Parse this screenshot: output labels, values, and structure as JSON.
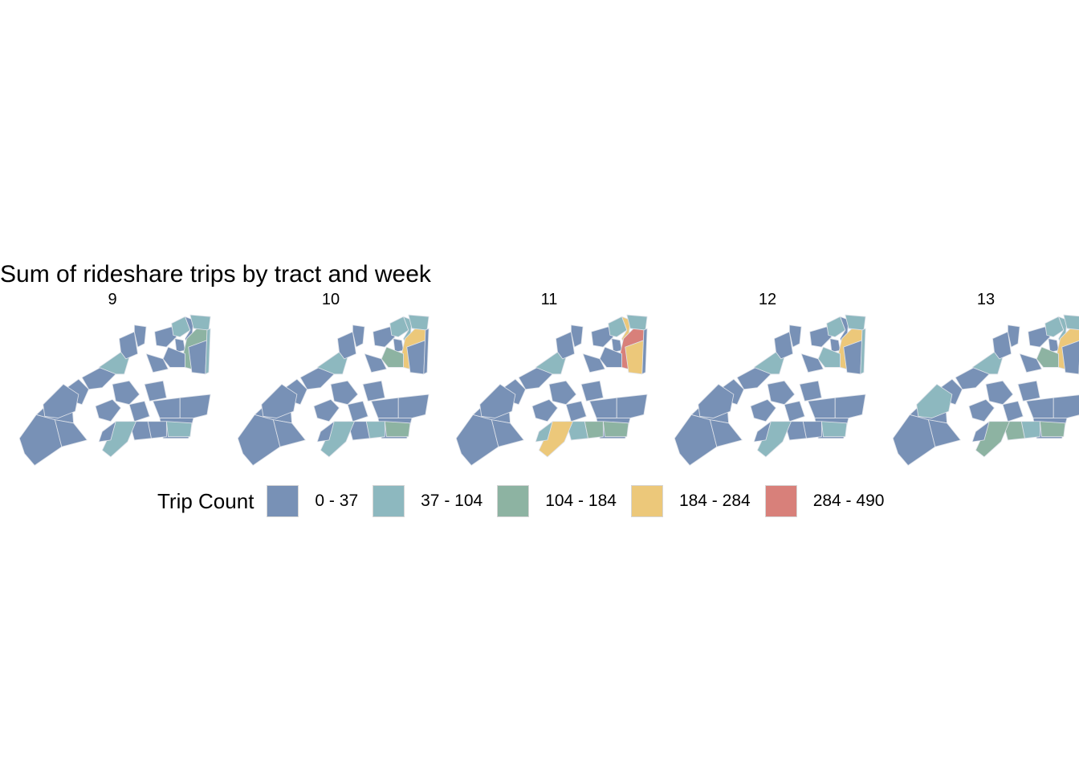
{
  "title": "Sum of rideshare trips by tract and week",
  "legend": {
    "title": "Trip Count",
    "classes": [
      {
        "label": "0 - 37",
        "color": "#7891b6"
      },
      {
        "label": "37 - 104",
        "color": "#8db8bf"
      },
      {
        "label": "104 - 184",
        "color": "#8db3a2"
      },
      {
        "label": "184 - 284",
        "color": "#ecc87a"
      },
      {
        "label": "284 - 490",
        "color": "#d8807a"
      }
    ]
  },
  "panels": [
    {
      "week": "9",
      "highlights": {
        "nw_b": 1,
        "ne_a": 1,
        "ne_c": 2,
        "se_a": 1,
        "sw_e": 1,
        "ne_i": 1,
        "ne_j": 1
      }
    },
    {
      "week": "10",
      "highlights": {
        "nw_b": 1,
        "ne_a": 1,
        "ne_b": 1,
        "ne_c": 3,
        "ne_d": 2,
        "se_a": 2,
        "se_b": 1,
        "sw_e": 1,
        "ne_i": 1
      }
    },
    {
      "week": "11",
      "highlights": {
        "nw_b": 1,
        "ne_a": 1,
        "ne_b": 3,
        "ne_c": 4,
        "ne_h": 3,
        "se_a": 2,
        "se_b": 2,
        "se_c": 1,
        "sw_e": 3,
        "sw_f": 1,
        "ne_i": 1
      }
    },
    {
      "week": "12",
      "highlights": {
        "nw_b": 1,
        "ne_a": 1,
        "ne_c": 3,
        "ne_d": 1,
        "se_a": 1,
        "sw_e": 1,
        "ne_i": 1,
        "ne_j": 1
      }
    },
    {
      "week": "13",
      "highlights": {
        "w_big": 1,
        "nw_b": 1,
        "ne_a": 1,
        "ne_b": 1,
        "ne_c": 3,
        "ne_d": 2,
        "se_a": 2,
        "se_b": 1,
        "se_c": 2,
        "sw_e": 2,
        "ne_i": 1
      }
    }
  ]
}
